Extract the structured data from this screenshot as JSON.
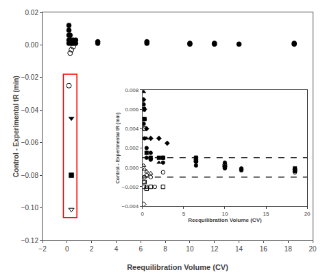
{
  "chart_data": [
    {
      "type": "scatter",
      "xlabel": "Reequilibration Volume (CV)",
      "ylabel": "Control - Experimental tR (min)",
      "xlim": [
        -2,
        20
      ],
      "ylim": [
        -0.12,
        0.02
      ],
      "xticks": [
        {
          "value": -2,
          "label": "−2"
        },
        0,
        2,
        4,
        6,
        8,
        10,
        12,
        14,
        16,
        18,
        20
      ],
      "yticks": [
        0.02,
        {
          "value": 0.0,
          "label": "0.00"
        },
        {
          "value": -0.02,
          "label": "−0.02"
        },
        {
          "value": -0.04,
          "label": "−0.04"
        },
        {
          "value": -0.06,
          "label": "−0.06"
        },
        {
          "value": -0.08,
          "label": "−0.08"
        },
        {
          "value": -0.1,
          "label": "−0.10"
        },
        {
          "value": -0.12,
          "label": "−0.12"
        }
      ],
      "grid": false,
      "series": [
        {
          "marker": "circle",
          "color": "black",
          "x": [
            0.15,
            0.15,
            0.15,
            0.15,
            0.15,
            0.25,
            0.25,
            0.35,
            0.35,
            0.5,
            0.5,
            0.7,
            0.7,
            2.5,
            2.5,
            6.5,
            6.5,
            10.0,
            10.0,
            12.0,
            12.0,
            14.0,
            18.5,
            18.5
          ],
          "y": [
            0.012,
            0.009,
            0.006,
            0.003,
            0.001,
            0.006,
            0.003,
            0.003,
            0.001,
            0.003,
            0.001,
            0.003,
            0.001,
            0.002,
            0.001,
            0.002,
            0.001,
            0.001,
            0.0005,
            0.001,
            0.0005,
            0.0005,
            0.001,
            0.0005
          ]
        },
        {
          "marker": "circle-open",
          "color": "black",
          "x": [
            0.15,
            0.25,
            0.35,
            0.5
          ],
          "y": [
            -0.025,
            -0.005,
            -0.003,
            -0.001
          ]
        },
        {
          "marker": "triangle-down",
          "color": "black",
          "x": [
            0.35
          ],
          "y": [
            -0.045
          ]
        },
        {
          "marker": "square",
          "color": "black",
          "x": [
            0.35
          ],
          "y": [
            -0.08
          ]
        },
        {
          "marker": "triangle-down-open",
          "color": "black",
          "x": [
            0.35
          ],
          "y": [
            -0.101
          ]
        }
      ],
      "highlight": {
        "x": -0.3,
        "y": -0.106,
        "width": 1.1,
        "height": 0.088,
        "color": "red"
      }
    },
    {
      "type": "scatter",
      "xlabel": "Reequilibration Volume (CV)",
      "ylabel": "Control - Experimental tR (min)",
      "xlim": [
        0,
        20
      ],
      "ylim": [
        -0.004,
        0.008
      ],
      "xticks": [
        0,
        5,
        10,
        15,
        20
      ],
      "yticks": [
        {
          "value": -0.004,
          "label": "−0.004"
        },
        {
          "value": -0.002,
          "label": "−0.002"
        },
        {
          "value": 0.0,
          "label": "0.000"
        },
        0.002,
        0.004,
        0.006,
        0.008
      ],
      "grid": false,
      "series": [
        {
          "marker": "triangle-up",
          "color": "black",
          "x": [
            0.15,
            0.25,
            0.5,
            1.0,
            2.0
          ],
          "y": [
            0.0078,
            0.005,
            0.003,
            0.001,
            0.0005
          ]
        },
        {
          "marker": "diamond-open",
          "color": "black",
          "x": [
            0.15
          ],
          "y": [
            -0.0038
          ]
        },
        {
          "marker": "diamond",
          "color": "black",
          "x": [
            0.15,
            0.25,
            0.5,
            1.0,
            2.0,
            3.0
          ],
          "y": [
            0.007,
            0.006,
            0.004,
            0.003,
            0.003,
            0.0025
          ]
        },
        {
          "marker": "circle",
          "color": "black",
          "x": [
            0.15,
            0.15,
            0.25,
            0.25,
            0.5,
            0.5,
            1.0,
            1.0,
            2.5,
            2.5,
            6.5,
            6.5,
            6.5,
            10.0,
            10.0,
            10.0,
            12.0,
            12.0,
            18.5,
            18.5
          ],
          "y": [
            0.0065,
            0.0045,
            0.005,
            0.003,
            0.002,
            0.001,
            0.0015,
            0.0008,
            0.001,
            0.0005,
            0.001,
            0.0006,
            0.0002,
            0.0005,
            0.0001,
            -0.0001,
            -0.0001,
            -0.0003,
            -0.0002,
            -0.0004
          ]
        },
        {
          "marker": "circle-open",
          "color": "black",
          "x": [
            0.15,
            0.15,
            0.25,
            0.25,
            0.5,
            0.5,
            1.0,
            1.5,
            2.5,
            6.5,
            10.0,
            10.0,
            12.0,
            18.5,
            18.5
          ],
          "y": [
            0.005,
            -0.0015,
            0.004,
            -0.001,
            -0.0008,
            -0.002,
            -0.001,
            -0.002,
            -0.0005,
            0.0006,
            0.0003,
            0.0001,
            -0.0002,
            -0.0003,
            -0.0005
          ]
        },
        {
          "marker": "triangle-up-open",
          "color": "black",
          "x": [
            0.15,
            0.25,
            0.5,
            1.0
          ],
          "y": [
            0.0002,
            -0.0002,
            -0.0004,
            -0.0006
          ]
        },
        {
          "marker": "square",
          "color": "black",
          "x": [
            0.15,
            0.25,
            0.5,
            1.0,
            2.0,
            2.5,
            6.5,
            10.0,
            18.5
          ],
          "y": [
            0.006,
            0.005,
            0.0015,
            0.001,
            0.001,
            0.001,
            0.001,
            5e-05,
            -0.0001
          ]
        },
        {
          "marker": "square-open",
          "color": "black",
          "x": [
            0.15,
            0.15,
            0.25,
            0.25,
            0.5,
            1.0,
            2.5,
            6.5,
            10.0,
            18.5
          ],
          "y": [
            0.006,
            -0.002,
            0.004,
            -0.0015,
            -0.0022,
            -0.002,
            -0.002,
            0.0007,
            0.0002,
            -0.0003
          ]
        }
      ],
      "hlines": [
        {
          "y": 0.001,
          "color": "black",
          "line_style": "dashed"
        },
        {
          "y": -0.001,
          "color": "black",
          "line_style": "dashed"
        }
      ]
    }
  ]
}
